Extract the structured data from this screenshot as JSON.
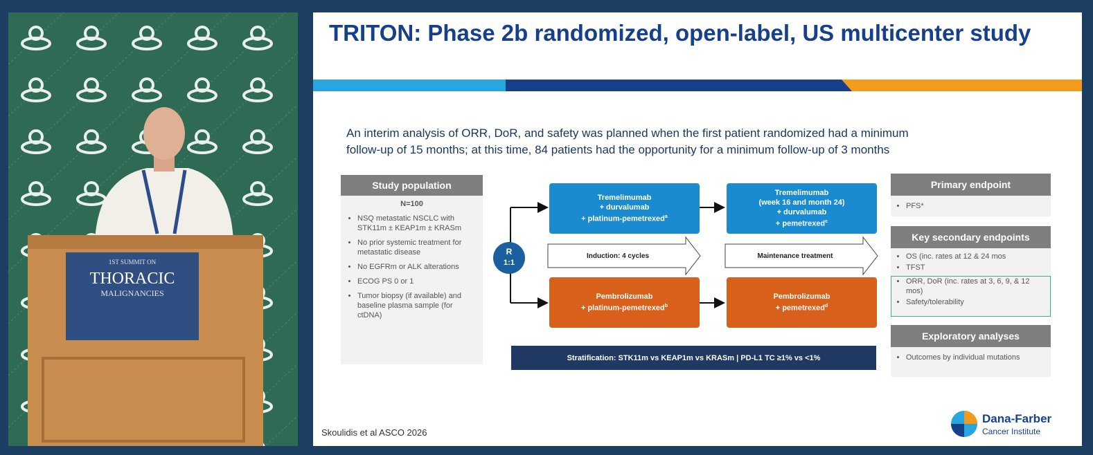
{
  "podium": {
    "lines": [
      "1ST SUMMIT ON",
      "THORACIC",
      "MALIGNANCIES"
    ]
  },
  "slide": {
    "title": "TRITON: Phase 2b randomized, open-label, US multicenter study",
    "intro": [
      "An interim analysis of ORR, DoR, and safety was planned when the first patient randomized had a minimum",
      "follow-up of 15 months; at this time, 84 patients had the opportunity for a minimum follow-up of 3 months"
    ],
    "population": {
      "header": "Study population",
      "n": "N=100",
      "bullets": [
        "NSQ metastatic NSCLC with STK11m ± KEAP1m ± KRASm",
        "No prior systemic treatment for metastatic disease",
        "No EGFRm or ALK alterations",
        "ECOG PS 0 or 1",
        "Tumor biopsy (if available) and baseline plasma sample (for ctDNA)"
      ]
    },
    "randomization": {
      "label": "R",
      "ratio": "1:1"
    },
    "arms": [
      {
        "lines": [
          "Tremelimumab",
          "+ durvalumab",
          "+ platinum-pemetrexed"
        ],
        "note": "a"
      },
      {
        "lines": [
          "Tremelimumab",
          "(week 16 and month 24)",
          "+ durvalumab",
          "+ pemetrexed"
        ],
        "note": "c"
      },
      {
        "lines": [
          "Pembrolizumab",
          "+ platinum-pemetrexed"
        ],
        "note": "b"
      },
      {
        "lines": [
          "Pembrolizumab",
          "+ pemetrexed"
        ],
        "note": "d"
      }
    ],
    "phases": [
      "Induction: 4 cycles",
      "Maintenance treatment"
    ],
    "stratification": "Stratification: STK11m vs KEAP1m vs KRASm | PD-L1 TC ≥1% vs <1%",
    "endpoints": [
      {
        "header": "Primary endpoint",
        "items": [
          "PFS*"
        ]
      },
      {
        "header": "Key secondary endpoints",
        "items": [
          "OS (inc. rates at 12 & 24 mos",
          "TFST",
          "ORR, DoR (inc. rates at 3, 6, 9, & 12 mos)",
          "Safety/tolerability"
        ]
      },
      {
        "header": "Exploratory analyses",
        "items": [
          "Outcomes by individual mutations"
        ]
      }
    ],
    "citation": "Skoulidis et al ASCO 2026",
    "logo": {
      "name": "Dana-Farber",
      "subtitle": "Cancer Institute"
    }
  }
}
